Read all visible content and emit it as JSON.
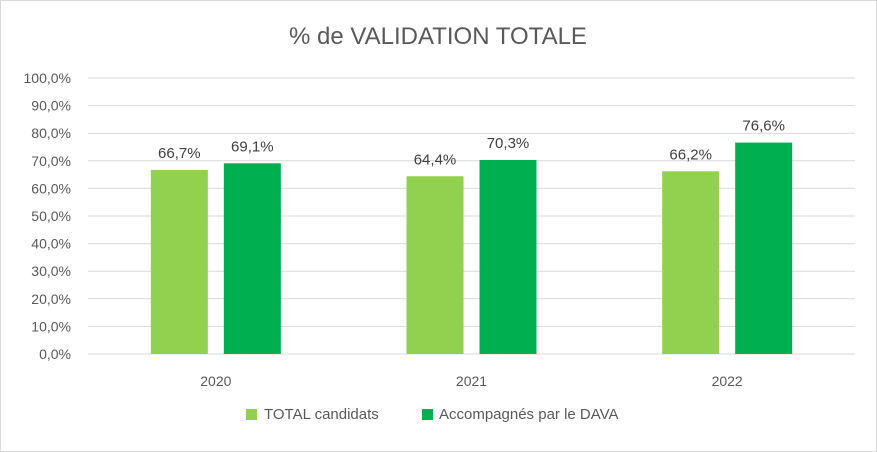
{
  "chart_data": {
    "type": "bar",
    "title": "% de VALIDATION TOTALE",
    "categories": [
      "2020",
      "2021",
      "2022"
    ],
    "series": [
      {
        "name": "TOTAL candidats",
        "values": [
          66.7,
          64.4,
          66.2
        ],
        "labels": [
          "66,7%",
          "64,4%",
          "66,2%"
        ],
        "color": "#92d050"
      },
      {
        "name": "Accompagnés par le DAVA",
        "values": [
          69.1,
          70.3,
          76.6
        ],
        "labels": [
          "69,1%",
          "70,3%",
          "76,6%"
        ],
        "color": "#00b050"
      }
    ],
    "ylim": [
      0,
      100
    ],
    "yticks": [
      0,
      10,
      20,
      30,
      40,
      50,
      60,
      70,
      80,
      90,
      100
    ],
    "ytick_labels": [
      "0,0%",
      "10,0%",
      "20,0%",
      "30,0%",
      "40,0%",
      "50,0%",
      "60,0%",
      "70,0%",
      "80,0%",
      "90,0%",
      "100,0%"
    ],
    "grid": true,
    "legend_position": "bottom"
  }
}
